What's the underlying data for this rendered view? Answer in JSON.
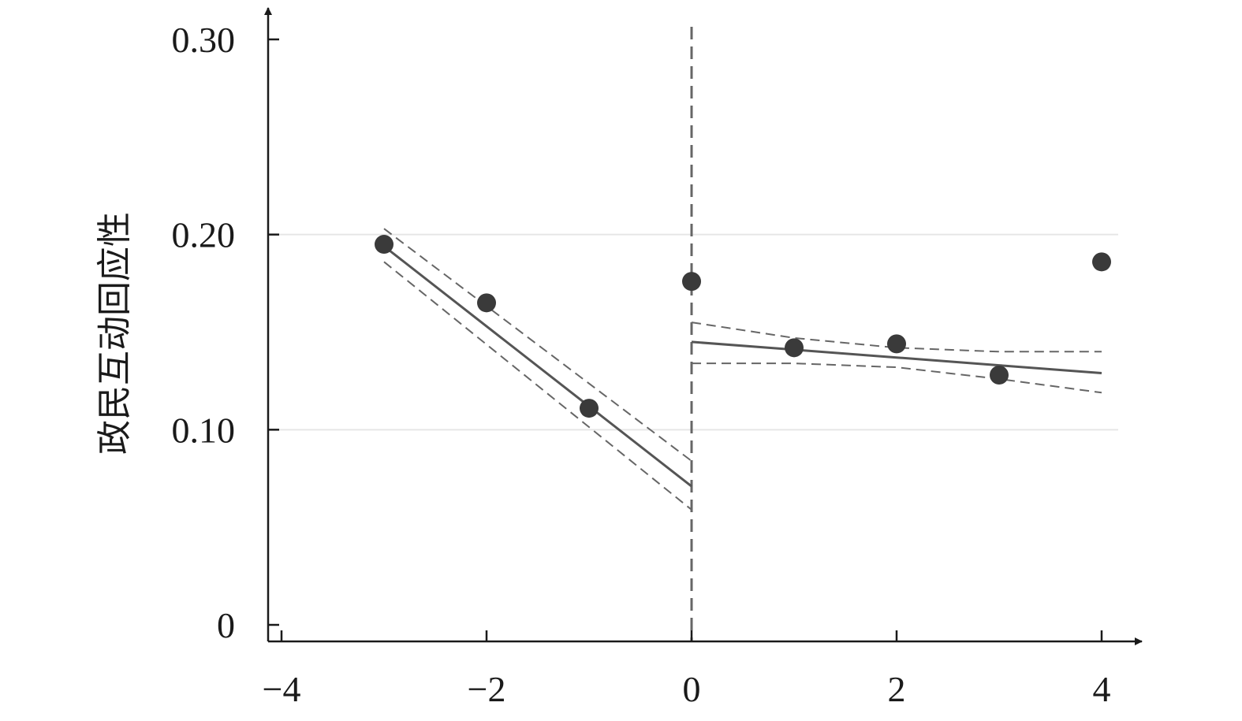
{
  "chart_data": {
    "type": "scatter",
    "title": "",
    "xlabel": "",
    "ylabel": "政民互动回应性",
    "xlim": [
      -4,
      4
    ],
    "ylim": [
      0,
      0.3
    ],
    "x_ticks": [
      -4,
      -2,
      0,
      2,
      4
    ],
    "x_tick_labels": [
      "−4",
      "−2",
      "0",
      "2",
      "4"
    ],
    "y_ticks": [
      0,
      0.1,
      0.2,
      0.3
    ],
    "y_tick_labels": [
      "0",
      "0.10",
      "0.20",
      "0.30"
    ],
    "grid": "horizontal",
    "cutoff_x": 0,
    "points": [
      {
        "x": -3,
        "y": 0.195
      },
      {
        "x": -2,
        "y": 0.165
      },
      {
        "x": -1,
        "y": 0.111
      },
      {
        "x": 0,
        "y": 0.176
      },
      {
        "x": 1,
        "y": 0.142
      },
      {
        "x": 2,
        "y": 0.144
      },
      {
        "x": 3,
        "y": 0.128
      },
      {
        "x": 4,
        "y": 0.186
      }
    ],
    "fits": [
      {
        "x": [
          -3,
          0
        ],
        "y": [
          0.194,
          0.071
        ],
        "ci_upper": [
          0.203,
          0.084
        ],
        "ci_lower": [
          0.186,
          0.059
        ]
      },
      {
        "x": [
          0,
          1,
          2,
          3,
          4
        ],
        "y": [
          0.145,
          0.141,
          0.137,
          0.133,
          0.129
        ],
        "ci_upper": [
          0.155,
          0.147,
          0.142,
          0.14,
          0.14
        ],
        "ci_lower": [
          0.134,
          0.134,
          0.132,
          0.126,
          0.119
        ]
      }
    ],
    "colors": {
      "points": "#3a3a3a",
      "fit_line": "#555555",
      "ci_line": "#666666",
      "axis": "#1a1a1a",
      "grid": "#e6e6e6"
    }
  }
}
